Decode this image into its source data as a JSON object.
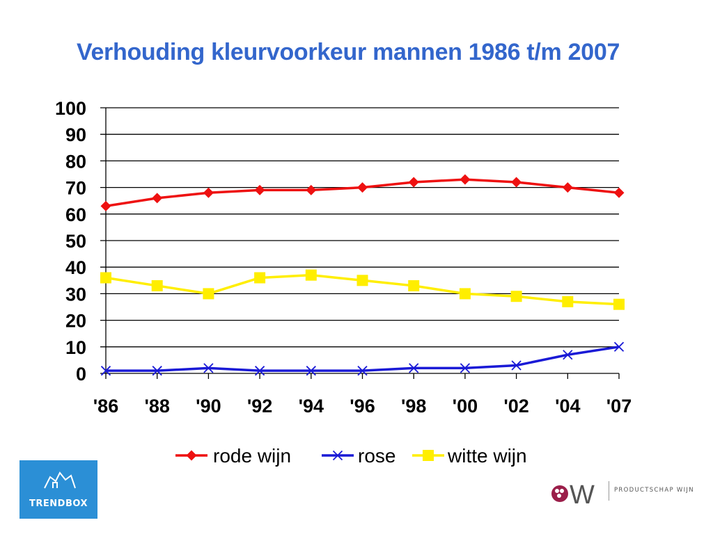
{
  "title": "Verhouding kleurvoorkeur mannen 1986 t/m 2007",
  "chart_data": {
    "type": "line",
    "title": "Verhouding kleurvoorkeur mannen 1986 t/m 2007",
    "categories": [
      "'86",
      "'88",
      "'90",
      "'92",
      "'94",
      "'96",
      "'98",
      "'00",
      "'02",
      "'04",
      "'07"
    ],
    "ylim": [
      0,
      100
    ],
    "yticks": [
      0,
      10,
      20,
      30,
      40,
      50,
      60,
      70,
      80,
      90,
      100
    ],
    "grid": true,
    "legend_position": "bottom",
    "series": [
      {
        "name": "rode wijn",
        "color": "#ee1111",
        "marker": "diamond",
        "values": [
          63,
          66,
          68,
          69,
          69,
          70,
          72,
          73,
          72,
          70,
          68
        ]
      },
      {
        "name": "rose",
        "color": "#1a1ad6",
        "marker": "x",
        "values": [
          1,
          1,
          2,
          1,
          1,
          1,
          2,
          2,
          3,
          7,
          10
        ]
      },
      {
        "name": "witte wijn",
        "color": "#ffee00",
        "marker": "square",
        "values": [
          36,
          33,
          30,
          36,
          37,
          35,
          33,
          30,
          29,
          27,
          26
        ]
      }
    ]
  },
  "logos": {
    "left_text": "TRENDBOX",
    "right_text": "PRODUCTSCHAP WIJN",
    "right_mark": "PW"
  }
}
